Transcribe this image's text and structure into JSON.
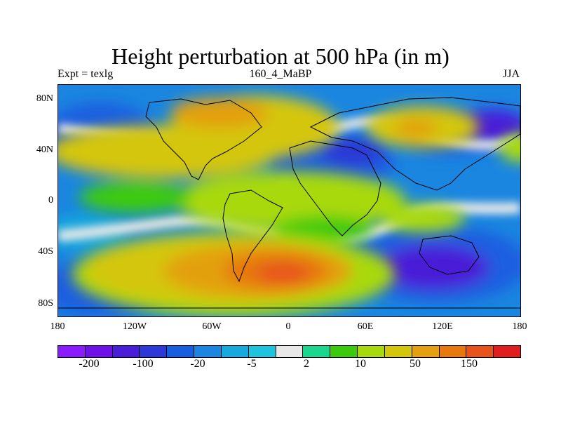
{
  "title": "Height perturbation at 500 hPa (in m)",
  "subtitle_left": "Expt = texlg",
  "subtitle_center": "160_4_MaBP",
  "subtitle_right": "JJA",
  "y_axis_labels": [
    "80N",
    "40N",
    "0",
    "40S",
    "80S"
  ],
  "x_axis_labels": [
    "180",
    "120W",
    "60W",
    "0",
    "60E",
    "120E",
    "180"
  ],
  "colorbar": {
    "colors": [
      "#8c1aff",
      "#6e10e6",
      "#4a1ed8",
      "#2c39d6",
      "#1a5ee0",
      "#1a86e0",
      "#16a9dd",
      "#1ec3dd",
      "#e8e8e8",
      "#19d78f",
      "#3cca0c",
      "#a8d90d",
      "#d4c60b",
      "#e3a010",
      "#e6780e",
      "#e8531b",
      "#e01e1e"
    ],
    "labels": [
      "-200",
      "-100",
      "-20",
      "-5",
      "2",
      "10",
      "50",
      "150"
    ]
  },
  "icons": [
    "continent-outline"
  ]
}
